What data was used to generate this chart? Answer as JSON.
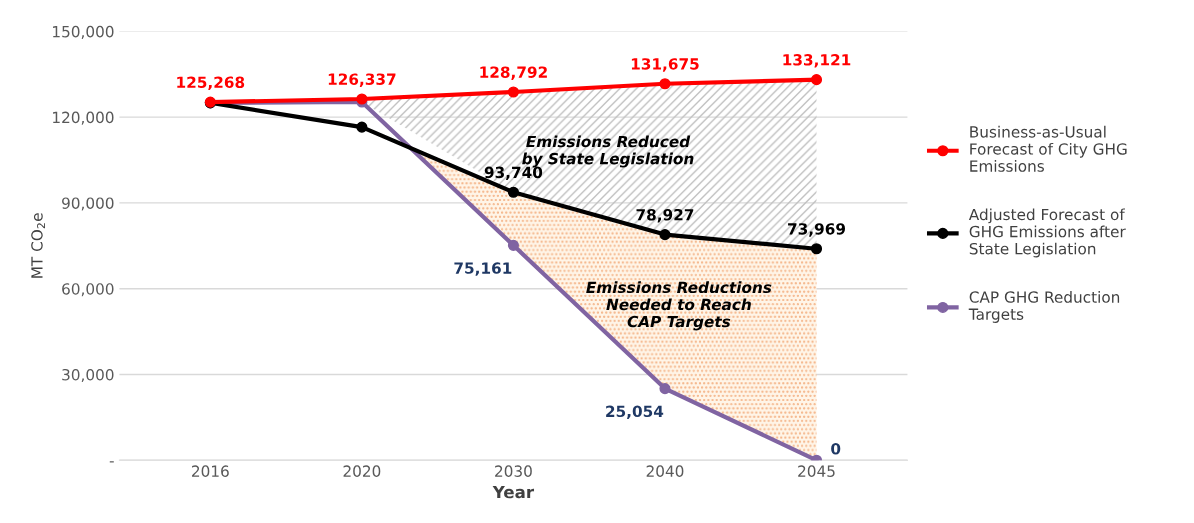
{
  "chart_data": {
    "type": "line",
    "xlabel": "Year",
    "ylabel": "MT CO$_{2}$e",
    "categories": [
      "2016",
      "2020",
      "2030",
      "2040",
      "2045"
    ],
    "series": [
      {
        "name": "Business-as-Usual Forecast of City GHG Emissions",
        "color": "#ff0000",
        "values": [
          125268,
          126337,
          128792,
          131675,
          133121
        ],
        "value_labels": [
          "125,268",
          "126,337",
          "128,792",
          "131,675",
          "133,121"
        ]
      },
      {
        "name": "Adjusted Forecast of GHG Emissions after State Legislation",
        "color": "#000000",
        "values": [
          125000,
          116500,
          93740,
          78927,
          73969
        ],
        "value_labels": [
          null,
          null,
          "93,740",
          "78,927",
          "73,969"
        ]
      },
      {
        "name": "CAP GHG Reduction Targets",
        "color": "#8064a2",
        "values": [
          125000,
          125300,
          75161,
          25054,
          0
        ],
        "value_labels": [
          null,
          null,
          "75,161",
          "25,054",
          "0"
        ]
      }
    ],
    "ylim": [
      0,
      150000
    ],
    "yticks": [
      {
        "value": 0,
        "label": "-"
      },
      {
        "value": 30000,
        "label": "30,000"
      },
      {
        "value": 60000,
        "label": "60,000"
      },
      {
        "value": 90000,
        "label": "90,000"
      },
      {
        "value": 120000,
        "label": "120,000"
      },
      {
        "value": 150000,
        "label": "150,000"
      }
    ],
    "grid": "y",
    "legend": "right",
    "marker": "circle",
    "line_style": "solid",
    "annotations": [
      "Emissions Reduced\nby State Legislation",
      "Emissions Reductions\nNeeded to Reach\nCAP Targets"
    ]
  }
}
